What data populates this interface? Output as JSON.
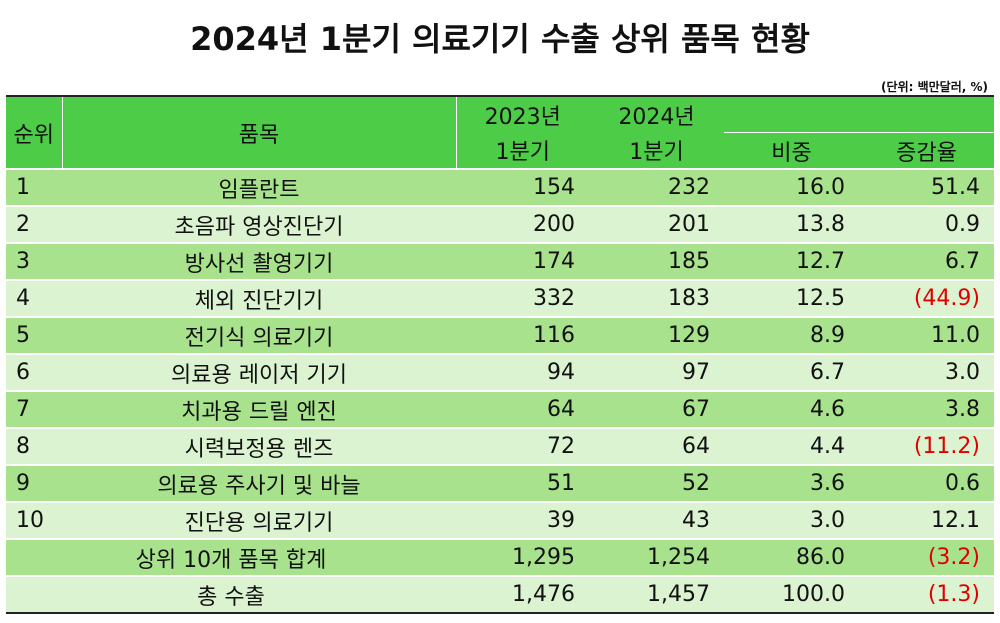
{
  "title": "2024년 1분기 의료기기 수출 상위 품목 현황",
  "unit": "(단위: 백만달러, %)",
  "header": {
    "rank": "순위",
    "item": "품목",
    "y2023_line1": "2023년",
    "y2023_line2": "1분기",
    "y2024_line1": "2024년",
    "y2024_line2": "1분기",
    "share": "비중",
    "growth": "증감율"
  },
  "rows": [
    {
      "rank": "1",
      "item": "임플란트",
      "q2023": "154",
      "q2024": "232",
      "share": "16.0",
      "growth": "51.4"
    },
    {
      "rank": "2",
      "item": "초음파 영상진단기",
      "q2023": "200",
      "q2024": "201",
      "share": "13.8",
      "growth": "0.9"
    },
    {
      "rank": "3",
      "item": "방사선 촬영기기",
      "q2023": "174",
      "q2024": "185",
      "share": "12.7",
      "growth": "6.7"
    },
    {
      "rank": "4",
      "item": "체외 진단기기",
      "q2023": "332",
      "q2024": "183",
      "share": "12.5",
      "growth": "(44.9)"
    },
    {
      "rank": "5",
      "item": "전기식 의료기기",
      "q2023": "116",
      "q2024": "129",
      "share": "8.9",
      "growth": "11.0"
    },
    {
      "rank": "6",
      "item": "의료용 레이저 기기",
      "q2023": "94",
      "q2024": "97",
      "share": "6.7",
      "growth": "3.0"
    },
    {
      "rank": "7",
      "item": "치과용 드릴 엔진",
      "q2023": "64",
      "q2024": "67",
      "share": "4.6",
      "growth": "3.8"
    },
    {
      "rank": "8",
      "item": "시력보정용 렌즈",
      "q2023": "72",
      "q2024": "64",
      "share": "4.4",
      "growth": "(11.2)"
    },
    {
      "rank": "9",
      "item": "의료용 주사기 및 바늘",
      "q2023": "51",
      "q2024": "52",
      "share": "3.6",
      "growth": "0.6"
    },
    {
      "rank": "10",
      "item": "진단용 의료기기",
      "q2023": "39",
      "q2024": "43",
      "share": "3.0",
      "growth": "12.1"
    }
  ],
  "subtotal": {
    "label": "상위 10개 품목 합계",
    "q2023": "1,295",
    "q2024": "1,254",
    "share": "86.0",
    "growth": "(3.2)"
  },
  "total": {
    "label": "총 수출",
    "q2023": "1,476",
    "q2024": "1,457",
    "share": "100.0",
    "growth": "(1.3)"
  },
  "colors": {
    "header_bg": "#4dcd47",
    "row_dark": "#a8e28d",
    "row_light": "#dbf3d0",
    "negative": "#e00000"
  }
}
